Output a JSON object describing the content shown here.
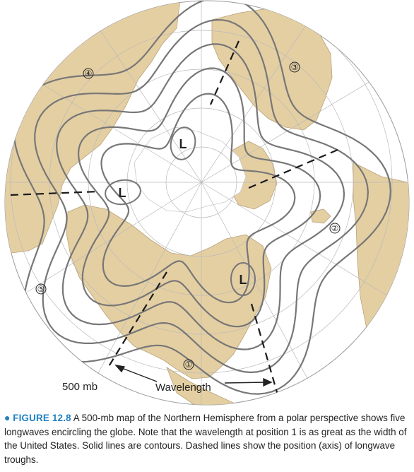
{
  "figure": {
    "bullet": "●",
    "label": "FIGURE 12.8",
    "caption": "A 500-mb map of the Northern Hemisphere from a polar perspective shows five longwaves encircling the globe. Note that the wavelength at position 1 is as great as the width of the United States. Solid lines are contours. Dashed lines show the position (axis) of longwave troughs."
  },
  "map": {
    "level_label": "500 mb",
    "wavelength_label": "Wavelength",
    "positions": [
      "①",
      "②",
      "③",
      "④",
      "⑤"
    ],
    "lows": [
      "L",
      "L",
      "L"
    ],
    "colors": {
      "ocean": "#ffffff",
      "land": "#e4cfa3",
      "ice": "#ffffff",
      "contour": "#777777",
      "grid": "#b9b9b9",
      "trough": "#1a1a1a"
    }
  }
}
